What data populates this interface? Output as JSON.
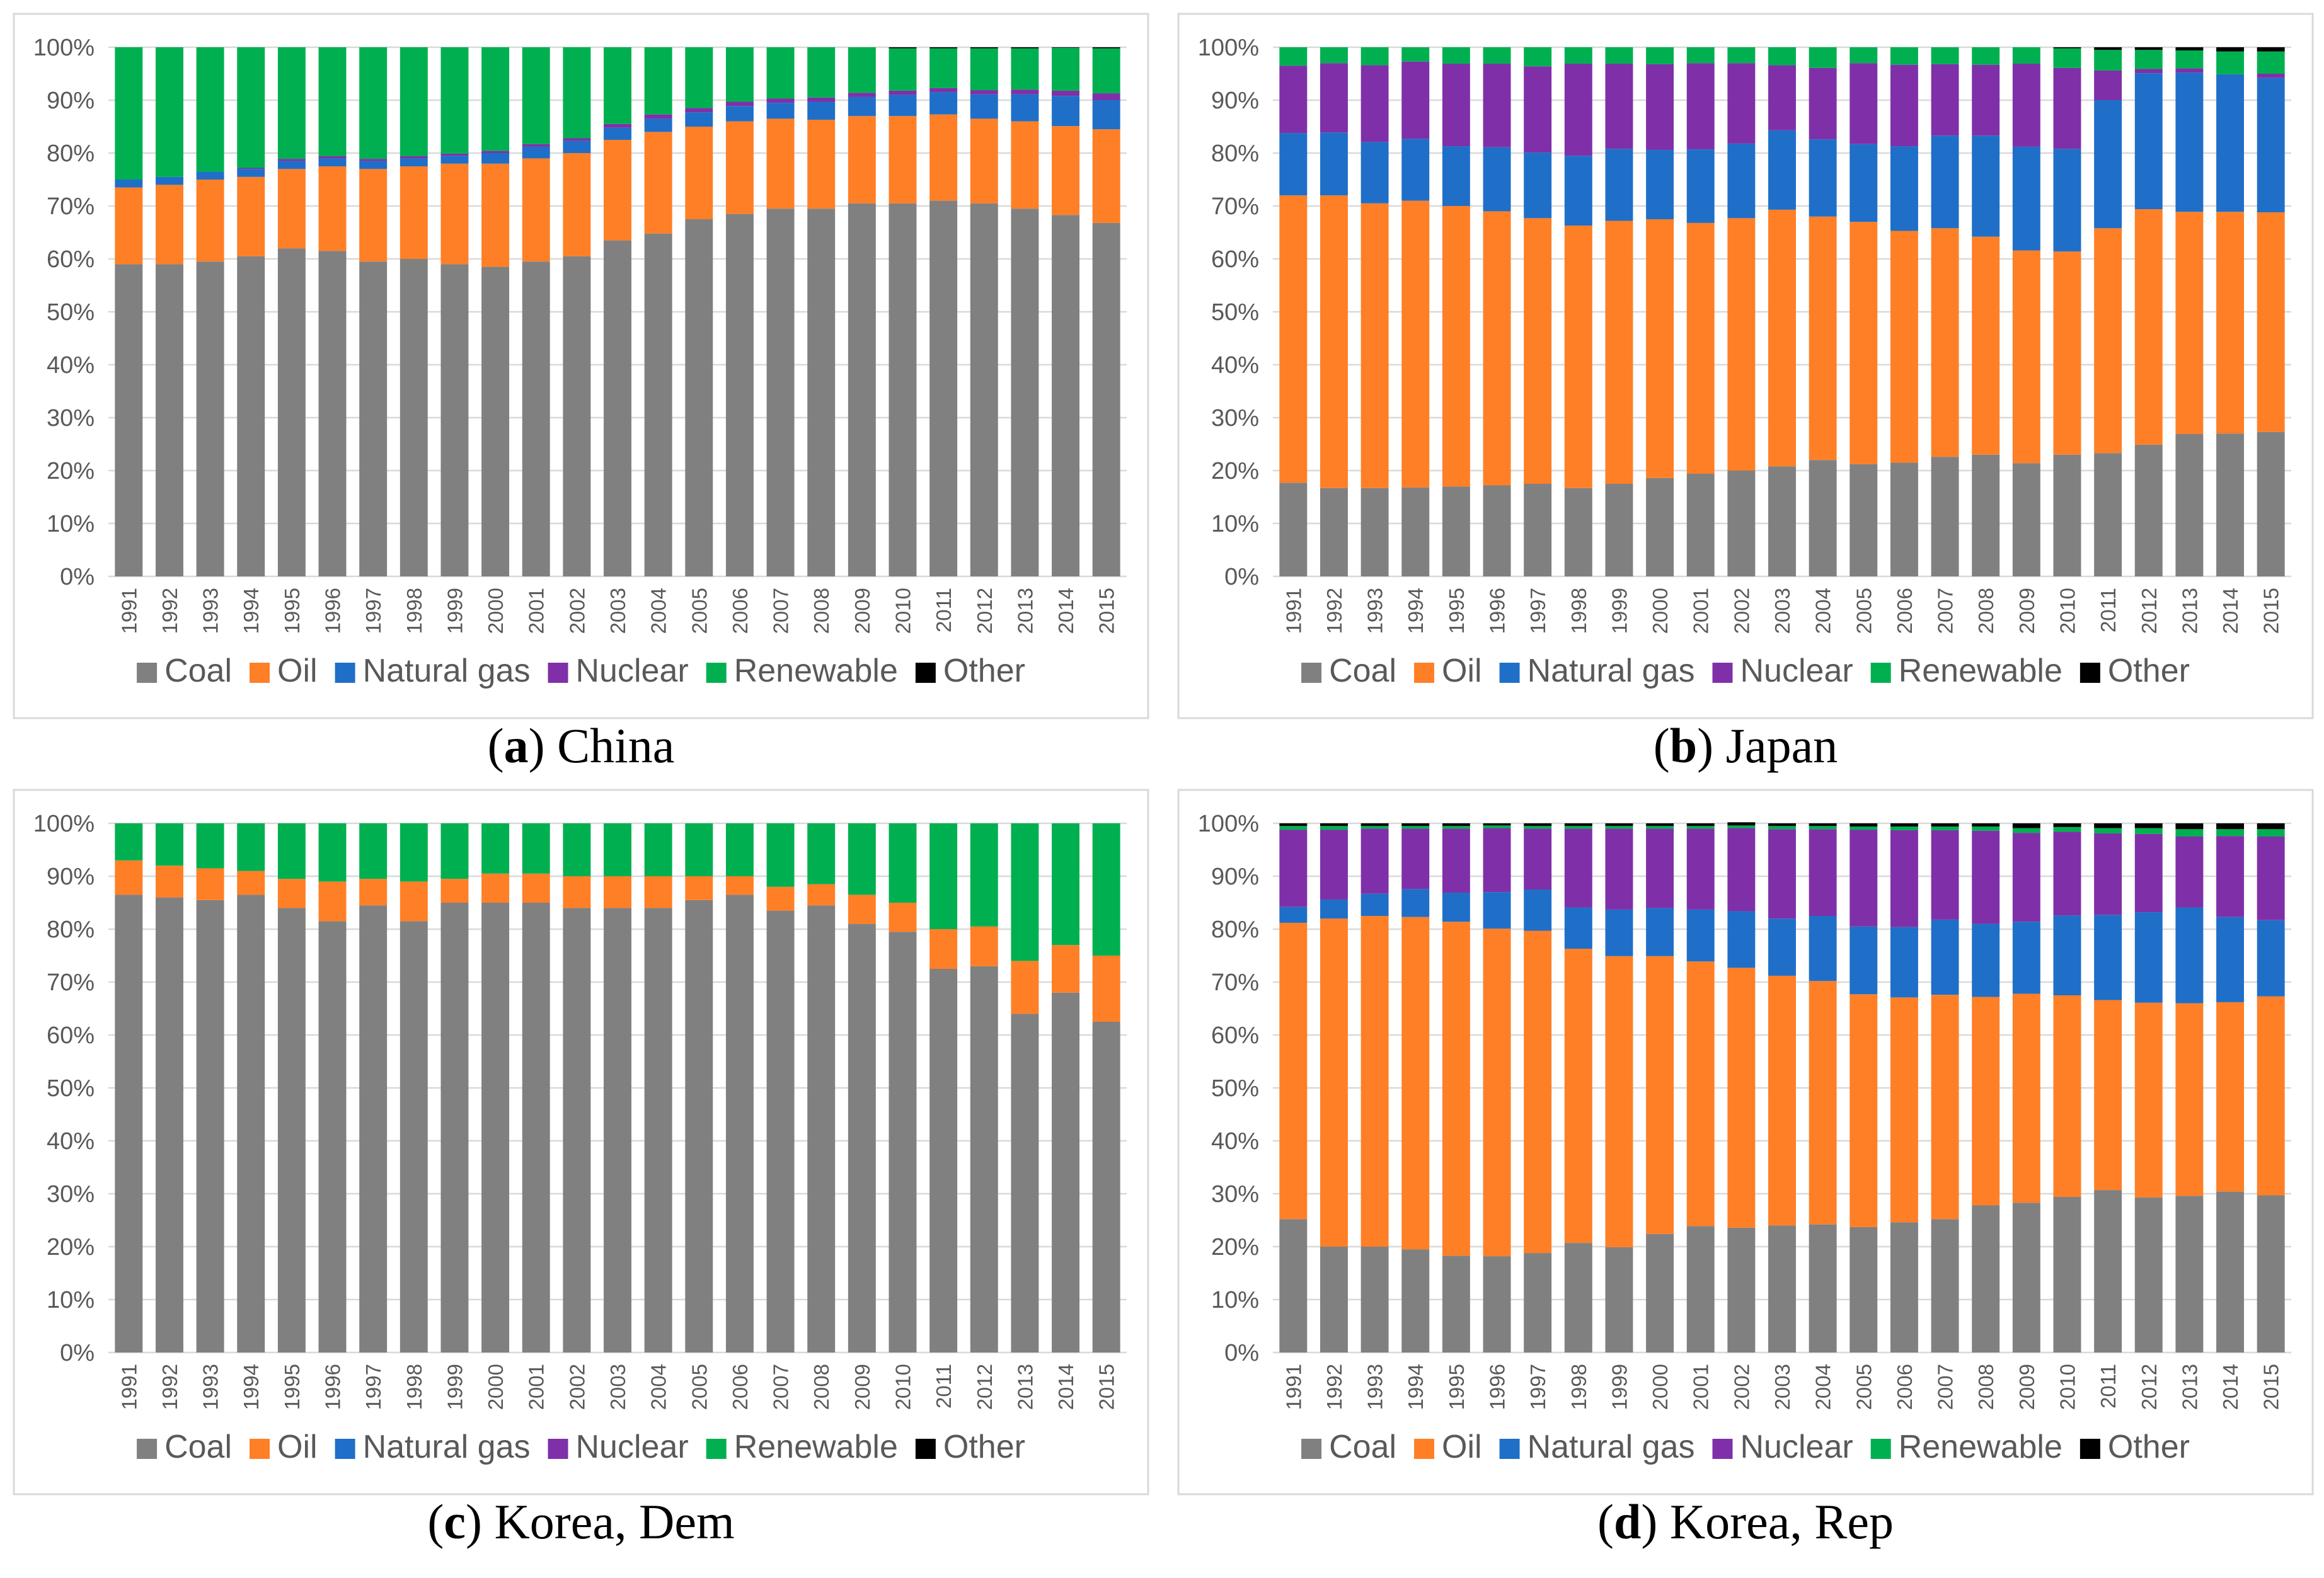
{
  "colors": {
    "Coal": "#808080",
    "Oil": "#ff7f27",
    "Natural gas": "#1f6fc8",
    "Nuclear": "#7f30a8",
    "Renewable": "#00b050",
    "Other": "#000000"
  },
  "chart_data": [
    {
      "type": "bar",
      "stacked": true,
      "caption": {
        "letter": "a",
        "name": "China"
      },
      "categories": [
        "1991",
        "1992",
        "1993",
        "1994",
        "1995",
        "1996",
        "1997",
        "1998",
        "1999",
        "2000",
        "2001",
        "2002",
        "2003",
        "2004",
        "2005",
        "2006",
        "2007",
        "2008",
        "2009",
        "2010",
        "2011",
        "2012",
        "2013",
        "2014",
        "2015"
      ],
      "yticks": [
        "0%",
        "10%",
        "20%",
        "30%",
        "40%",
        "50%",
        "60%",
        "70%",
        "80%",
        "90%",
        "100%"
      ],
      "ylim": [
        0,
        100
      ],
      "grid": true,
      "legend_position": "bottom",
      "series": [
        {
          "name": "Coal",
          "values": [
            59,
            59,
            59.5,
            60.5,
            62,
            61.5,
            59.5,
            60,
            59,
            58.5,
            59.5,
            60.5,
            63.5,
            64.8,
            67.5,
            68.5,
            69.5,
            69.5,
            70.5,
            70.5,
            71,
            70.5,
            69.5,
            68.3,
            66.8
          ]
        },
        {
          "name": "Oil",
          "values": [
            14.5,
            15,
            15.5,
            15,
            15,
            16,
            17.5,
            17.5,
            19,
            19.5,
            19.5,
            19.5,
            19,
            19.2,
            17.5,
            17.5,
            17,
            16.8,
            16.5,
            16.5,
            16.3,
            16,
            16.5,
            16.8,
            17.7
          ]
        },
        {
          "name": "Natural gas",
          "values": [
            1.5,
            1.5,
            1.5,
            1.5,
            1.5,
            1.5,
            1.5,
            1.5,
            1.5,
            2,
            2.2,
            2.3,
            2.3,
            2.5,
            2.7,
            2.9,
            3,
            3.4,
            3.6,
            4,
            4.2,
            4.6,
            5.1,
            5.7,
            5.5
          ]
        },
        {
          "name": "Nuclear",
          "values": [
            0,
            0,
            0,
            0.2,
            0.4,
            0.4,
            0.4,
            0.4,
            0.4,
            0.4,
            0.5,
            0.5,
            0.7,
            0.8,
            0.8,
            0.8,
            0.8,
            0.8,
            0.8,
            0.8,
            0.8,
            0.8,
            0.9,
            1,
            1.3
          ]
        },
        {
          "name": "Renewable",
          "values": [
            25,
            24.5,
            23.5,
            22.8,
            21.1,
            20.6,
            21.1,
            20.6,
            20.1,
            19.6,
            18.3,
            17.2,
            14.5,
            12.7,
            11.5,
            10.3,
            9.7,
            9.5,
            8.6,
            8,
            7.5,
            7.9,
            7.8,
            8.1,
            8.5
          ]
        },
        {
          "name": "Other",
          "values": [
            0,
            0,
            0,
            0,
            0,
            0,
            0,
            0,
            0,
            0,
            0,
            0,
            0,
            0,
            0,
            0,
            0,
            0,
            0,
            0.2,
            0.2,
            0.2,
            0.2,
            0.1,
            0.2
          ]
        }
      ]
    },
    {
      "type": "bar",
      "stacked": true,
      "caption": {
        "letter": "b",
        "name": "Japan"
      },
      "categories": [
        "1991",
        "1992",
        "1993",
        "1994",
        "1995",
        "1996",
        "1997",
        "1998",
        "1999",
        "2000",
        "2001",
        "2002",
        "2003",
        "2004",
        "2005",
        "2006",
        "2007",
        "2008",
        "2009",
        "2010",
        "2011",
        "2012",
        "2013",
        "2014",
        "2015"
      ],
      "yticks": [
        "0%",
        "10%",
        "20%",
        "30%",
        "40%",
        "50%",
        "60%",
        "70%",
        "80%",
        "90%",
        "100%"
      ],
      "ylim": [
        0,
        100
      ],
      "grid": true,
      "legend_position": "bottom",
      "series": [
        {
          "name": "Coal",
          "values": [
            17.7,
            16.7,
            16.7,
            16.8,
            17,
            17.2,
            17.5,
            16.7,
            17.5,
            18.6,
            19.4,
            20,
            20.8,
            22,
            21.2,
            21.5,
            22.6,
            23,
            21.4,
            23,
            23.3,
            24.9,
            26.9,
            27,
            27.3
          ]
        },
        {
          "name": "Oil",
          "values": [
            54.3,
            55.3,
            53.8,
            54.2,
            53,
            51.8,
            50.2,
            49.6,
            49.7,
            48.9,
            47.4,
            47.7,
            48.5,
            46,
            45.8,
            43.8,
            43.2,
            41.2,
            40.2,
            38.4,
            42.5,
            44.5,
            42,
            41.9,
            41.5
          ]
        },
        {
          "name": "Natural gas",
          "values": [
            11.8,
            11.9,
            11.6,
            11.7,
            11.3,
            12.1,
            12.4,
            13.2,
            13.6,
            13.1,
            13.9,
            14.1,
            15,
            14.6,
            14.7,
            16,
            17.5,
            19.1,
            19.6,
            19.4,
            24.2,
            25.7,
            26.3,
            26,
            25.4
          ]
        },
        {
          "name": "Nuclear",
          "values": [
            12.7,
            13.1,
            14.5,
            14.6,
            15.6,
            15.8,
            16.3,
            17.4,
            16.1,
            16.2,
            16.3,
            15.2,
            12.3,
            13.5,
            15.3,
            15.4,
            13.5,
            13.4,
            15.7,
            15.3,
            5.6,
            0.8,
            0.8,
            0,
            0.8
          ]
        },
        {
          "name": "Renewable",
          "values": [
            3.5,
            3,
            3.4,
            2.7,
            3.1,
            3.1,
            3.6,
            3.1,
            3.1,
            3.2,
            3,
            3,
            3.4,
            3.9,
            3,
            3.3,
            3.2,
            3.3,
            3.1,
            3.7,
            3.9,
            3.6,
            3.4,
            4.3,
            4.2
          ]
        },
        {
          "name": "Other",
          "values": [
            0,
            0,
            0,
            0,
            0,
            0,
            0,
            0,
            0,
            0,
            0,
            0,
            0,
            0,
            0,
            0,
            0,
            0,
            0,
            0.2,
            0.5,
            0.5,
            0.6,
            0.8,
            0.8
          ]
        }
      ]
    },
    {
      "type": "bar",
      "stacked": true,
      "caption": {
        "letter": "c",
        "name": "Korea, Dem"
      },
      "categories": [
        "1991",
        "1992",
        "1993",
        "1994",
        "1995",
        "1996",
        "1997",
        "1998",
        "1999",
        "2000",
        "2001",
        "2002",
        "2003",
        "2004",
        "2005",
        "2006",
        "2007",
        "2008",
        "2009",
        "2010",
        "2011",
        "2012",
        "2013",
        "2014",
        "2015"
      ],
      "yticks": [
        "0%",
        "10%",
        "20%",
        "30%",
        "40%",
        "50%",
        "60%",
        "70%",
        "80%",
        "90%",
        "100%"
      ],
      "ylim": [
        0,
        100
      ],
      "grid": true,
      "legend_position": "bottom",
      "series": [
        {
          "name": "Coal",
          "values": [
            86.5,
            86,
            85.5,
            86.5,
            84,
            81.5,
            84.5,
            81.5,
            85,
            85,
            85,
            84,
            84,
            84,
            85.5,
            86.5,
            83.5,
            84.5,
            81,
            79.5,
            72.5,
            73,
            64,
            68,
            62.5
          ]
        },
        {
          "name": "Oil",
          "values": [
            6.5,
            6,
            6,
            4.5,
            5.5,
            7.5,
            5,
            7.5,
            4.5,
            5.5,
            5.5,
            6,
            6,
            6,
            4.5,
            3.5,
            4.5,
            4,
            5.5,
            5.5,
            7.5,
            7.5,
            10,
            9,
            12.5
          ]
        },
        {
          "name": "Natural gas",
          "values": [
            0,
            0,
            0,
            0,
            0,
            0,
            0,
            0,
            0,
            0,
            0,
            0,
            0,
            0,
            0,
            0,
            0,
            0,
            0,
            0,
            0,
            0,
            0,
            0,
            0
          ]
        },
        {
          "name": "Nuclear",
          "values": [
            0,
            0,
            0,
            0,
            0,
            0,
            0,
            0,
            0,
            0,
            0,
            0,
            0,
            0,
            0,
            0,
            0,
            0,
            0,
            0,
            0,
            0,
            0,
            0,
            0
          ]
        },
        {
          "name": "Renewable",
          "values": [
            7,
            8,
            8.5,
            9,
            10.5,
            11,
            10.5,
            11,
            10.5,
            9.5,
            9.5,
            10,
            10,
            10,
            10,
            10,
            12,
            11.5,
            13.5,
            15,
            20,
            19.5,
            26,
            23,
            25
          ]
        },
        {
          "name": "Other",
          "values": [
            0,
            0,
            0,
            0,
            0,
            0,
            0,
            0,
            0,
            0,
            0,
            0,
            0,
            0,
            0,
            0,
            0,
            0,
            0,
            0,
            0,
            0,
            0,
            0,
            0
          ]
        }
      ]
    },
    {
      "type": "bar",
      "stacked": true,
      "caption": {
        "letter": "d",
        "name": "Korea, Rep"
      },
      "categories": [
        "1991",
        "1992",
        "1993",
        "1994",
        "1995",
        "1996",
        "1997",
        "1998",
        "1999",
        "2000",
        "2001",
        "2002",
        "2003",
        "2004",
        "2005",
        "2006",
        "2007",
        "2008",
        "2009",
        "2010",
        "2011",
        "2012",
        "2013",
        "2014",
        "2015"
      ],
      "yticks": [
        "0%",
        "10%",
        "20%",
        "30%",
        "40%",
        "50%",
        "60%",
        "70%",
        "80%",
        "90%",
        "100%"
      ],
      "ylim": [
        0,
        100
      ],
      "grid": true,
      "legend_position": "bottom",
      "series": [
        {
          "name": "Coal",
          "values": [
            25.2,
            20,
            20,
            19.5,
            18.3,
            18.2,
            18.8,
            20.7,
            19.9,
            22.4,
            23.9,
            23.6,
            24,
            24.2,
            23.7,
            24.6,
            25.2,
            27.8,
            28.3,
            29.4,
            30.7,
            29.3,
            29.6,
            30.4,
            29.7
          ]
        },
        {
          "name": "Oil",
          "values": [
            56,
            62,
            62.5,
            62.8,
            63.1,
            61.9,
            60.9,
            55.6,
            55,
            52.5,
            50,
            49.1,
            47.2,
            46,
            44,
            42.5,
            42.4,
            39.4,
            39.5,
            38.1,
            35.9,
            36.8,
            36.4,
            35.8,
            37.6
          ]
        },
        {
          "name": "Natural gas",
          "values": [
            3,
            3.6,
            4.2,
            5.3,
            5.5,
            6.9,
            7.8,
            7.8,
            8.8,
            9.1,
            9.8,
            10.7,
            10.8,
            12.3,
            12.8,
            13.3,
            14.2,
            13.8,
            13.6,
            15.1,
            16.1,
            17.1,
            18.1,
            16.1,
            14.4
          ]
        },
        {
          "name": "Nuclear",
          "values": [
            14.6,
            13.2,
            12.3,
            11.4,
            12.1,
            12.1,
            11.5,
            14.9,
            15.3,
            15,
            15.3,
            15.7,
            16.9,
            16.4,
            18.3,
            18.3,
            16.9,
            17.6,
            16.8,
            15.8,
            15.4,
            14.8,
            13.4,
            15.3,
            15.8
          ]
        },
        {
          "name": "Renewable",
          "values": [
            0.7,
            0.7,
            0.5,
            0.5,
            0.5,
            0.5,
            0.5,
            0.5,
            0.5,
            0.5,
            0.5,
            0.5,
            0.6,
            0.6,
            0.6,
            0.7,
            0.7,
            0.8,
            0.9,
            0.9,
            1,
            1.1,
            1.4,
            1.3,
            1.4
          ]
        },
        {
          "name": "Other",
          "values": [
            0.5,
            0.5,
            0.5,
            0.5,
            0.5,
            0.4,
            0.5,
            0.5,
            0.5,
            0.5,
            0.5,
            0.6,
            0.5,
            0.5,
            0.6,
            0.6,
            0.6,
            0.6,
            0.9,
            0.7,
            0.9,
            0.9,
            1.1,
            1.1,
            1.1
          ]
        }
      ]
    }
  ]
}
